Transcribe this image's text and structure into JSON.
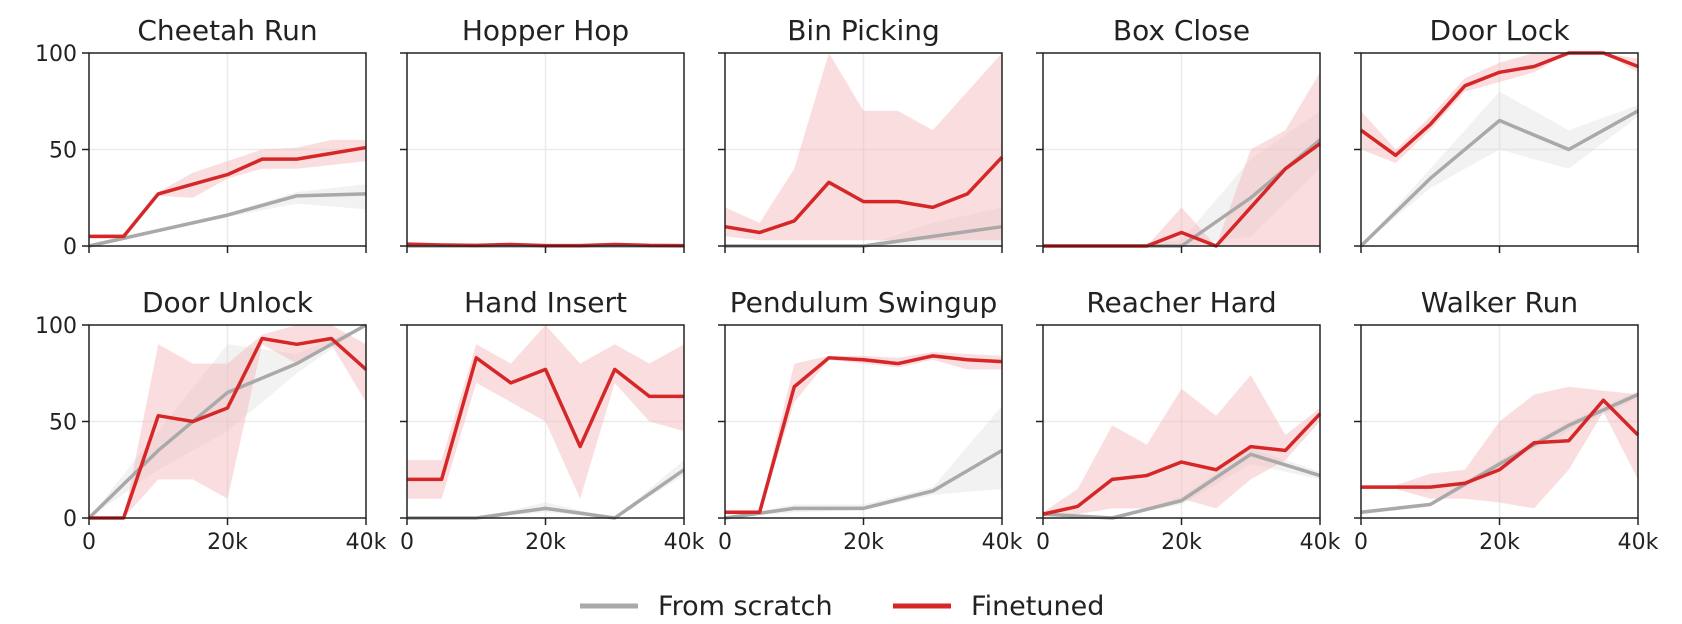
{
  "colors": {
    "scratch": "#a9a9a9",
    "finetuned": "#d62728",
    "scratch_band": "#d9d9d9",
    "finetuned_band": "#f4b6b8",
    "grid": "#ebebeb",
    "axis": "#222222"
  },
  "legend": [
    {
      "series": "scratch",
      "label": "From scratch"
    },
    {
      "series": "finetuned",
      "label": "Finetuned"
    }
  ],
  "chart_data": [
    {
      "type": "line",
      "title": "Cheetah Run",
      "xlim": [
        0,
        40000
      ],
      "ylim": [
        0,
        100
      ],
      "xticks": [
        0,
        20000,
        40000
      ],
      "xtick_labels": [
        "0",
        "20k",
        "40k"
      ],
      "yticks": [
        0,
        50,
        100
      ],
      "grid": true,
      "series": [
        {
          "name": "From scratch",
          "x": [
            0,
            10000,
            20000,
            30000,
            40000
          ],
          "y": [
            0,
            8,
            16,
            26,
            27
          ],
          "lower": [
            0,
            7,
            15,
            22,
            19
          ],
          "upper": [
            1,
            9,
            17,
            28,
            32
          ]
        },
        {
          "name": "Finetuned",
          "x": [
            0,
            5000,
            10000,
            15000,
            20000,
            25000,
            30000,
            35000,
            40000
          ],
          "y": [
            5,
            5,
            27,
            32,
            37,
            45,
            45,
            48,
            51
          ],
          "lower": [
            4,
            4,
            26,
            25,
            35,
            40,
            40,
            42,
            44
          ],
          "upper": [
            6,
            6,
            28,
            38,
            44,
            50,
            51,
            55,
            55
          ]
        }
      ]
    },
    {
      "type": "line",
      "title": "Hopper Hop",
      "xlim": [
        0,
        40000
      ],
      "ylim": [
        0,
        100
      ],
      "xticks": [
        0,
        20000,
        40000
      ],
      "xtick_labels": [
        "0",
        "20k",
        "40k"
      ],
      "yticks": [
        0,
        50,
        100
      ],
      "grid": true,
      "series": [
        {
          "name": "From scratch",
          "x": [
            0,
            10000,
            20000,
            30000,
            40000
          ],
          "y": [
            0,
            0,
            0,
            0,
            0
          ],
          "lower": [
            0,
            0,
            0,
            0,
            0
          ],
          "upper": [
            0,
            0,
            0,
            0,
            0
          ]
        },
        {
          "name": "Finetuned",
          "x": [
            0,
            5000,
            10000,
            15000,
            20000,
            25000,
            30000,
            35000,
            40000
          ],
          "y": [
            1,
            0.5,
            0.3,
            0.8,
            0.2,
            0.2,
            0.8,
            0.3,
            0.2
          ],
          "lower": [
            0.5,
            0.2,
            0,
            0.4,
            0,
            0,
            0.4,
            0,
            0
          ],
          "upper": [
            1.5,
            0.8,
            0.6,
            1.2,
            0.5,
            0.5,
            1.2,
            0.6,
            0.5
          ]
        }
      ]
    },
    {
      "type": "line",
      "title": "Bin Picking",
      "xlim": [
        0,
        40000
      ],
      "ylim": [
        0,
        100
      ],
      "xticks": [
        0,
        20000,
        40000
      ],
      "xtick_labels": [
        "0",
        "20k",
        "40k"
      ],
      "yticks": [
        0,
        50,
        100
      ],
      "grid": true,
      "series": [
        {
          "name": "From scratch",
          "x": [
            0,
            10000,
            20000,
            30000,
            40000
          ],
          "y": [
            0,
            0,
            0,
            5,
            10
          ],
          "lower": [
            0,
            0,
            0,
            0,
            0
          ],
          "upper": [
            0,
            0,
            0,
            12,
            20
          ]
        },
        {
          "name": "Finetuned",
          "x": [
            0,
            5000,
            10000,
            15000,
            20000,
            25000,
            30000,
            35000,
            40000
          ],
          "y": [
            10,
            7,
            13,
            33,
            23,
            23,
            20,
            27,
            46
          ],
          "lower": [
            5,
            3,
            3,
            3,
            3,
            3,
            3,
            3,
            3
          ],
          "upper": [
            20,
            12,
            40,
            100,
            70,
            70,
            60,
            80,
            100
          ]
        }
      ]
    },
    {
      "type": "line",
      "title": "Box Close",
      "xlim": [
        0,
        40000
      ],
      "ylim": [
        0,
        100
      ],
      "xticks": [
        0,
        20000,
        40000
      ],
      "xtick_labels": [
        "0",
        "20k",
        "40k"
      ],
      "yticks": [
        0,
        50,
        100
      ],
      "grid": true,
      "series": [
        {
          "name": "From scratch",
          "x": [
            0,
            10000,
            20000,
            30000,
            40000
          ],
          "y": [
            0,
            0,
            0,
            25,
            55
          ],
          "lower": [
            0,
            0,
            0,
            5,
            40
          ],
          "upper": [
            0,
            0,
            3,
            45,
            70
          ]
        },
        {
          "name": "Finetuned",
          "x": [
            0,
            5000,
            10000,
            15000,
            20000,
            25000,
            30000,
            35000,
            40000
          ],
          "y": [
            0,
            0,
            0,
            0,
            7,
            0,
            20,
            40,
            53
          ],
          "lower": [
            0,
            0,
            0,
            0,
            0,
            0,
            0,
            0,
            0
          ],
          "upper": [
            0,
            0,
            0,
            0,
            20,
            0,
            50,
            60,
            90
          ]
        }
      ]
    },
    {
      "type": "line",
      "title": "Door Lock",
      "xlim": [
        0,
        40000
      ],
      "ylim": [
        0,
        100
      ],
      "xticks": [
        0,
        20000,
        40000
      ],
      "xtick_labels": [
        "0",
        "20k",
        "40k"
      ],
      "yticks": [
        0,
        50,
        100
      ],
      "grid": true,
      "series": [
        {
          "name": "From scratch",
          "x": [
            0,
            10000,
            20000,
            30000,
            40000
          ],
          "y": [
            0,
            35,
            65,
            50,
            70
          ],
          "lower": [
            0,
            30,
            50,
            40,
            67
          ],
          "upper": [
            0,
            40,
            80,
            60,
            73
          ]
        },
        {
          "name": "Finetuned",
          "x": [
            0,
            5000,
            10000,
            15000,
            20000,
            25000,
            30000,
            35000,
            40000
          ],
          "y": [
            60,
            47,
            63,
            83,
            90,
            93,
            100,
            100,
            93
          ],
          "lower": [
            50,
            43,
            60,
            80,
            85,
            90,
            100,
            100,
            90
          ],
          "upper": [
            70,
            50,
            67,
            87,
            95,
            100,
            100,
            100,
            97
          ]
        }
      ]
    },
    {
      "type": "line",
      "title": "Door Unlock",
      "xlim": [
        0,
        40000
      ],
      "ylim": [
        0,
        100
      ],
      "xticks": [
        0,
        20000,
        40000
      ],
      "xtick_labels": [
        "0",
        "20k",
        "40k"
      ],
      "yticks": [
        0,
        50,
        100
      ],
      "grid": true,
      "series": [
        {
          "name": "From scratch",
          "x": [
            0,
            10000,
            20000,
            30000,
            40000
          ],
          "y": [
            0,
            35,
            65,
            80,
            100
          ],
          "lower": [
            0,
            25,
            45,
            75,
            100
          ],
          "upper": [
            0,
            45,
            90,
            85,
            100
          ]
        },
        {
          "name": "Finetuned",
          "x": [
            0,
            5000,
            10000,
            15000,
            20000,
            25000,
            30000,
            35000,
            40000
          ],
          "y": [
            0,
            0,
            53,
            50,
            57,
            93,
            90,
            93,
            77
          ],
          "lower": [
            0,
            0,
            20,
            20,
            10,
            90,
            80,
            90,
            60
          ],
          "upper": [
            0,
            0,
            90,
            80,
            80,
            95,
            100,
            100,
            90
          ]
        }
      ]
    },
    {
      "type": "line",
      "title": "Hand Insert",
      "xlim": [
        0,
        40000
      ],
      "ylim": [
        0,
        100
      ],
      "xticks": [
        0,
        20000,
        40000
      ],
      "xtick_labels": [
        "0",
        "20k",
        "40k"
      ],
      "yticks": [
        0,
        50,
        100
      ],
      "grid": true,
      "series": [
        {
          "name": "From scratch",
          "x": [
            0,
            10000,
            20000,
            30000,
            40000
          ],
          "y": [
            0,
            0,
            5,
            0,
            25
          ],
          "lower": [
            0,
            0,
            3,
            0,
            22
          ],
          "upper": [
            0,
            0,
            8,
            0,
            30
          ]
        },
        {
          "name": "Finetuned",
          "x": [
            0,
            5000,
            10000,
            15000,
            20000,
            25000,
            30000,
            35000,
            40000
          ],
          "y": [
            20,
            20,
            83,
            70,
            77,
            37,
            77,
            63,
            63
          ],
          "lower": [
            10,
            10,
            70,
            60,
            50,
            10,
            70,
            50,
            45
          ],
          "upper": [
            30,
            30,
            90,
            80,
            100,
            80,
            90,
            80,
            90
          ]
        }
      ]
    },
    {
      "type": "line",
      "title": "Pendulum Swingup",
      "xlim": [
        0,
        40000
      ],
      "ylim": [
        0,
        100
      ],
      "xticks": [
        0,
        20000,
        40000
      ],
      "xtick_labels": [
        "0",
        "20k",
        "40k"
      ],
      "yticks": [
        0,
        50,
        100
      ],
      "grid": true,
      "series": [
        {
          "name": "From scratch",
          "x": [
            0,
            10000,
            20000,
            30000,
            40000
          ],
          "y": [
            0,
            5,
            5,
            14,
            35
          ],
          "lower": [
            0,
            3,
            4,
            12,
            15
          ],
          "upper": [
            0,
            7,
            7,
            16,
            58
          ]
        },
        {
          "name": "Finetuned",
          "x": [
            0,
            5000,
            10000,
            15000,
            20000,
            25000,
            30000,
            35000,
            40000
          ],
          "y": [
            3,
            3,
            68,
            83,
            82,
            80,
            84,
            82,
            81
          ],
          "lower": [
            2,
            2,
            60,
            82,
            80,
            78,
            82,
            77,
            77
          ],
          "upper": [
            4,
            4,
            80,
            84,
            84,
            83,
            86,
            85,
            84
          ]
        }
      ]
    },
    {
      "type": "line",
      "title": "Reacher Hard",
      "xlim": [
        0,
        40000
      ],
      "ylim": [
        0,
        100
      ],
      "xticks": [
        0,
        20000,
        40000
      ],
      "xtick_labels": [
        "0",
        "20k",
        "40k"
      ],
      "yticks": [
        0,
        50,
        100
      ],
      "grid": true,
      "series": [
        {
          "name": "From scratch",
          "x": [
            0,
            10000,
            20000,
            30000,
            40000
          ],
          "y": [
            2,
            0,
            9,
            33,
            22
          ],
          "lower": [
            1,
            0,
            7,
            28,
            20
          ],
          "upper": [
            3,
            0,
            11,
            36,
            24
          ]
        },
        {
          "name": "Finetuned",
          "x": [
            0,
            5000,
            10000,
            15000,
            20000,
            25000,
            30000,
            35000,
            40000
          ],
          "y": [
            2,
            6,
            20,
            22,
            29,
            25,
            37,
            35,
            54
          ],
          "lower": [
            1,
            2,
            5,
            5,
            10,
            5,
            20,
            30,
            50
          ],
          "upper": [
            3,
            15,
            48,
            38,
            67,
            53,
            74,
            43,
            57
          ]
        }
      ]
    },
    {
      "type": "line",
      "title": "Walker Run",
      "xlim": [
        0,
        40000
      ],
      "ylim": [
        0,
        100
      ],
      "xticks": [
        0,
        20000,
        40000
      ],
      "xtick_labels": [
        "0",
        "20k",
        "40k"
      ],
      "yticks": [
        0,
        50,
        100
      ],
      "grid": true,
      "series": [
        {
          "name": "From scratch",
          "x": [
            0,
            10000,
            20000,
            30000,
            40000
          ],
          "y": [
            3,
            7,
            28,
            48,
            64
          ],
          "lower": [
            2,
            6,
            26,
            45,
            62
          ],
          "upper": [
            4,
            8,
            30,
            50,
            66
          ]
        },
        {
          "name": "Finetuned",
          "x": [
            0,
            5000,
            10000,
            15000,
            20000,
            25000,
            30000,
            35000,
            40000
          ],
          "y": [
            16,
            16,
            16,
            18,
            25,
            39,
            40,
            61,
            43
          ],
          "lower": [
            15,
            15,
            10,
            10,
            8,
            5,
            25,
            55,
            20
          ],
          "upper": [
            17,
            17,
            23,
            25,
            50,
            64,
            68,
            66,
            64
          ]
        }
      ]
    }
  ]
}
